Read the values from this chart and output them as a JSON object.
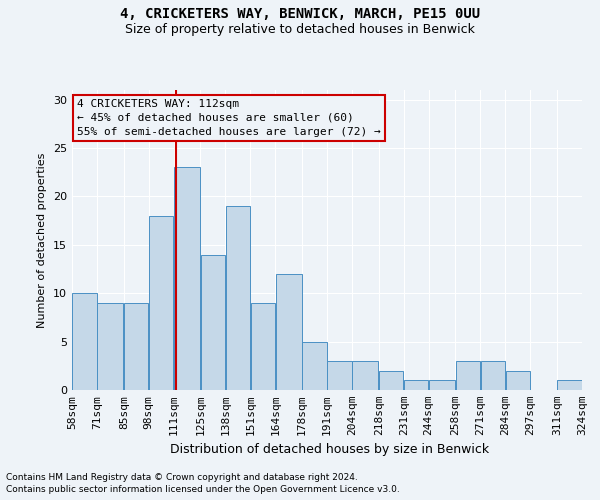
{
  "title1": "4, CRICKETERS WAY, BENWICK, MARCH, PE15 0UU",
  "title2": "Size of property relative to detached houses in Benwick",
  "xlabel": "Distribution of detached houses by size in Benwick",
  "ylabel": "Number of detached properties",
  "footnote1": "Contains HM Land Registry data © Crown copyright and database right 2024.",
  "footnote2": "Contains public sector information licensed under the Open Government Licence v3.0.",
  "annotation_title": "4 CRICKETERS WAY: 112sqm",
  "annotation_line1": "← 45% of detached houses are smaller (60)",
  "annotation_line2": "55% of semi-detached houses are larger (72) →",
  "bar_left_edges": [
    58,
    71,
    85,
    98,
    111,
    125,
    138,
    151,
    164,
    178,
    191,
    204,
    218,
    231,
    244,
    258,
    271,
    284,
    297,
    311
  ],
  "bar_widths": [
    13,
    14,
    13,
    13,
    14,
    13,
    13,
    13,
    14,
    13,
    13,
    14,
    13,
    13,
    14,
    13,
    13,
    13,
    14,
    13
  ],
  "bar_heights": [
    10,
    9,
    9,
    18,
    23,
    14,
    19,
    9,
    12,
    5,
    3,
    3,
    2,
    1,
    1,
    3,
    3,
    2,
    0,
    1
  ],
  "bar_color": "#c5d8e8",
  "bar_edge_color": "#4a90c4",
  "highlight_x": 112,
  "red_line_color": "#cc0000",
  "ylim": [
    0,
    31
  ],
  "yticks": [
    0,
    5,
    10,
    15,
    20,
    25,
    30
  ],
  "tick_labels": [
    "58sqm",
    "71sqm",
    "85sqm",
    "98sqm",
    "111sqm",
    "125sqm",
    "138sqm",
    "151sqm",
    "164sqm",
    "178sqm",
    "191sqm",
    "204sqm",
    "218sqm",
    "231sqm",
    "244sqm",
    "258sqm",
    "271sqm",
    "284sqm",
    "297sqm",
    "311sqm",
    "324sqm"
  ],
  "bg_color": "#eef3f8",
  "annotation_box_color": "#cc0000",
  "grid_color": "#ffffff",
  "xmin": 58,
  "xmax": 324
}
